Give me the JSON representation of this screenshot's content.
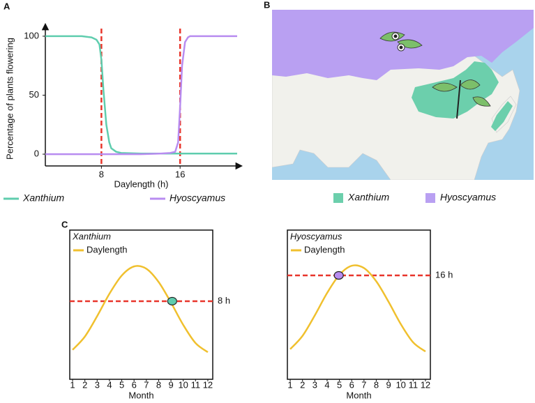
{
  "chart_data": [
    {
      "type": "line",
      "panel": "A",
      "x_label": "Daylength (h)",
      "y_label": "Percentage of plants flowering",
      "x": [
        2.3,
        4,
        6,
        7,
        7.5,
        7.8,
        8,
        8.2,
        8.5,
        8.8,
        9,
        9.5,
        10,
        12,
        14,
        15,
        15.5,
        15.8,
        16,
        16.2,
        16.5,
        16.8,
        17,
        18,
        20,
        21.8
      ],
      "series": [
        {
          "name": "Xanthium",
          "color": "#5fcdae",
          "values": [
            100,
            100,
            100,
            99,
            97,
            93,
            80,
            55,
            25,
            10,
            5,
            2,
            1,
            0.5,
            0.5,
            0.5,
            0.5,
            0.5,
            0.5,
            0.5,
            0.5,
            0.5,
            0.5,
            0.5,
            0.5,
            0.5
          ]
        },
        {
          "name": "Hyoscyamus",
          "color": "#b88cf0",
          "values": [
            0,
            0,
            0,
            0,
            0,
            0,
            0,
            0,
            0,
            0,
            0,
            0,
            0,
            0,
            0.5,
            1,
            2,
            10,
            40,
            75,
            95,
            99,
            100,
            100,
            100,
            100
          ]
        }
      ],
      "thresholds": [
        8,
        16
      ],
      "threshold_color": "#e8352b",
      "xlim": [
        2.3,
        21.8
      ],
      "ylim": [
        -10,
        110
      ],
      "xticks": [
        8,
        16
      ],
      "yticks": [
        0,
        50,
        100
      ]
    },
    {
      "type": "map",
      "panel": "B",
      "series": [
        {
          "name": "Xanthium",
          "color": "#6ccfac"
        },
        {
          "name": "Hyoscyamus",
          "color": "#b9a0f2"
        }
      ]
    },
    {
      "type": "line",
      "panel": "C",
      "title": "Xanthium",
      "x_label": "Month",
      "x": [
        1,
        2,
        3,
        4,
        5,
        6,
        7,
        8,
        9,
        10,
        11,
        12
      ],
      "series": [
        {
          "name": "Daylength",
          "color": "#f0c02e",
          "values": [
            4.41,
            5.39,
            6.9,
            8.55,
            9.89,
            10.56,
            10.39,
            9.41,
            7.9,
            6.25,
            4.91,
            4.24
          ]
        }
      ],
      "threshold": 8,
      "threshold_label": "8 h",
      "threshold_color": "#e8352b",
      "marker": {
        "x": 9.1,
        "y": 8,
        "color": "#5fcdae"
      },
      "xlim": [
        0.77,
        12.4
      ],
      "ylim": [
        2.24,
        13.24
      ],
      "xticks": [
        1,
        2,
        3,
        4,
        5,
        6,
        7,
        8,
        9,
        10,
        11,
        12
      ]
    },
    {
      "type": "line",
      "title": "Hyoscyamus",
      "x_label": "Month",
      "x": [
        1,
        2,
        3,
        4,
        5,
        6,
        7,
        8,
        9,
        10,
        11,
        12
      ],
      "series": [
        {
          "name": "Daylength",
          "color": "#f0c02e",
          "values": [
            10.56,
            11.54,
            13.05,
            14.7,
            16.04,
            16.71,
            16.54,
            15.56,
            14.05,
            12.4,
            11.06,
            10.39
          ]
        }
      ],
      "threshold": 16,
      "threshold_label": "16 h",
      "threshold_color": "#e8352b",
      "marker": {
        "x": 4.95,
        "y": 16,
        "color": "#b88cf0"
      },
      "xlim": [
        0.77,
        12.4
      ],
      "ylim": [
        8.34,
        19.34
      ],
      "xticks": [
        1,
        2,
        3,
        4,
        5,
        6,
        7,
        8,
        9,
        10,
        11,
        12
      ]
    }
  ]
}
